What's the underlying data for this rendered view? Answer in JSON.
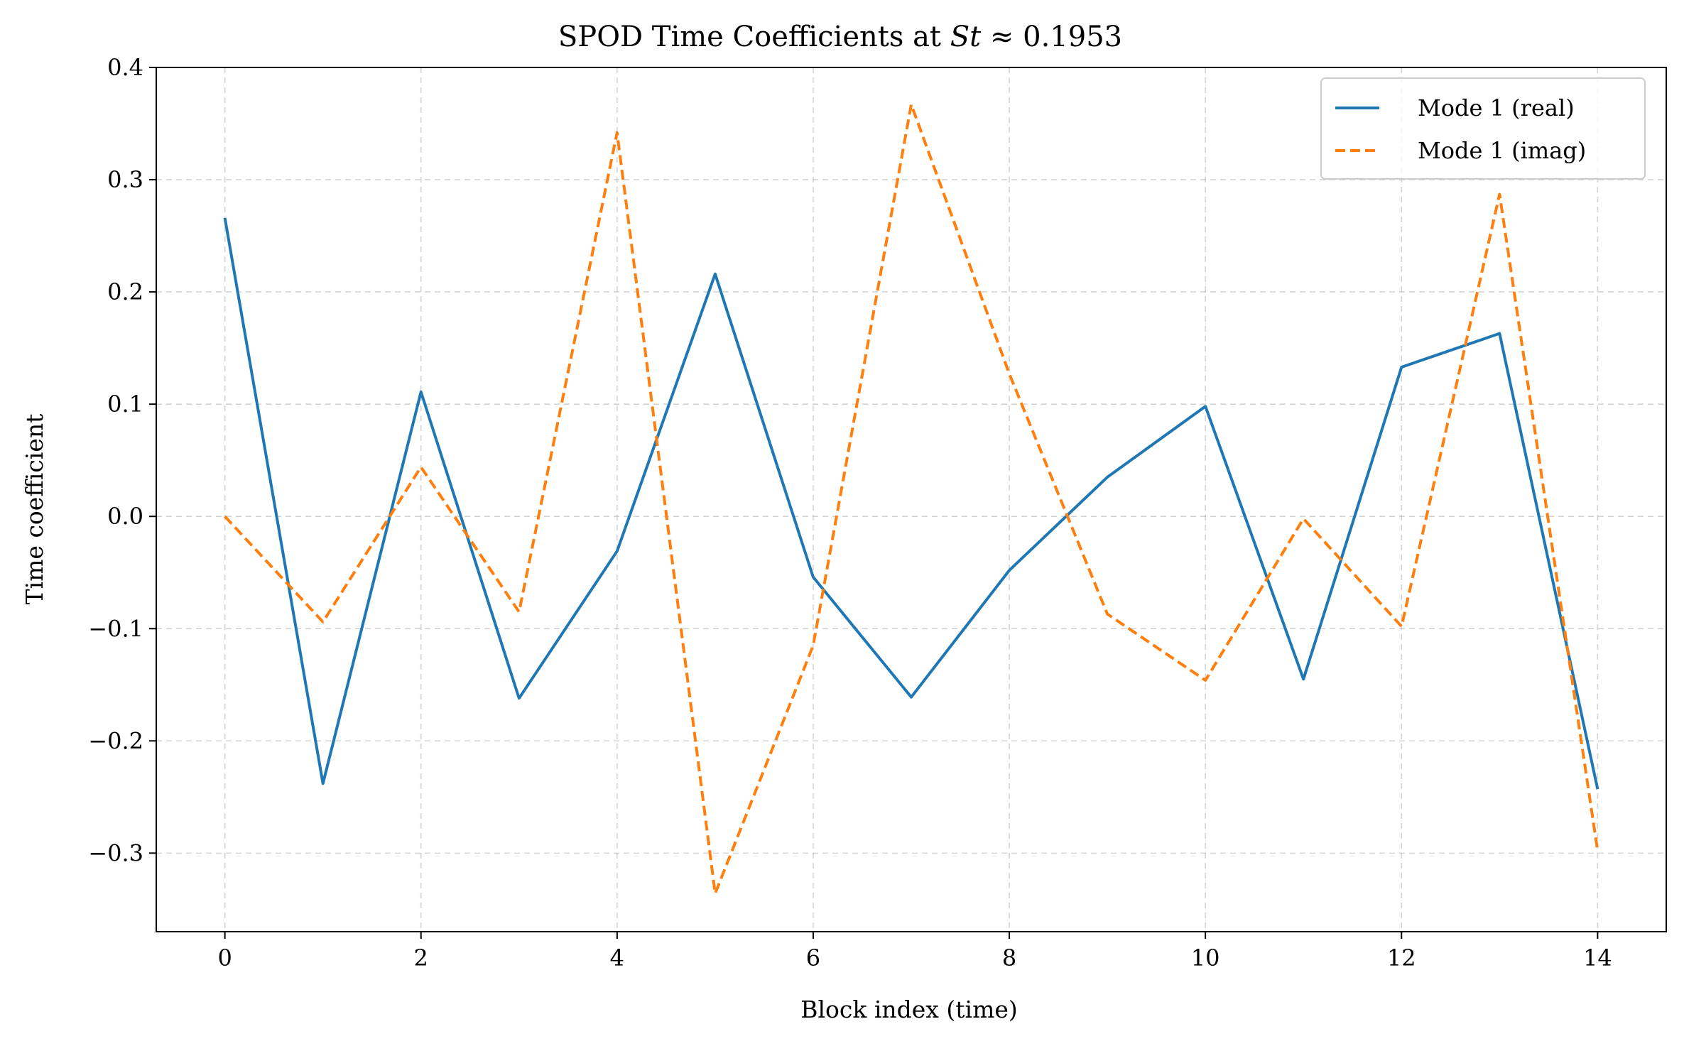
{
  "chart_data": {
    "type": "line",
    "title_prefix": "SPOD Time Coefficients at ",
    "title_math_var": "St",
    "title_math_rel": " ≈ 0.1953",
    "xlabel": "Block index (time)",
    "ylabel": "Time coefficient",
    "xlim": [
      -0.7,
      14.7
    ],
    "ylim": [
      -0.37,
      0.4
    ],
    "xticks": [
      0,
      2,
      4,
      6,
      8,
      10,
      12,
      14
    ],
    "xtick_labels": [
      "0",
      "2",
      "4",
      "6",
      "8",
      "10",
      "12",
      "14"
    ],
    "yticks": [
      0.4,
      0.3,
      0.2,
      0.1,
      0.0,
      -0.1,
      -0.2,
      -0.3
    ],
    "ytick_labels": [
      "0.4",
      "0.3",
      "0.2",
      "0.1",
      "0.0",
      "−0.1",
      "−0.2",
      "−0.3"
    ],
    "grid": true,
    "legend_position": "top-right",
    "x": [
      0,
      1,
      2,
      3,
      4,
      5,
      6,
      7,
      8,
      9,
      10,
      11,
      12,
      13,
      14
    ],
    "series": [
      {
        "name": "Mode 1 (real)",
        "color": "#1f77b4",
        "style": "solid",
        "values": [
          0.266,
          -0.238,
          0.111,
          -0.162,
          -0.031,
          0.216,
          -0.054,
          -0.161,
          -0.048,
          0.035,
          0.098,
          -0.145,
          0.133,
          0.163,
          -0.243
        ]
      },
      {
        "name": "Mode 1 (imag)",
        "color": "#ff7f0e",
        "style": "dashed",
        "values": [
          0.0,
          -0.094,
          0.044,
          -0.085,
          0.342,
          -0.336,
          -0.115,
          0.367,
          0.127,
          -0.087,
          -0.146,
          -0.002,
          -0.098,
          0.287,
          -0.298
        ]
      }
    ]
  }
}
